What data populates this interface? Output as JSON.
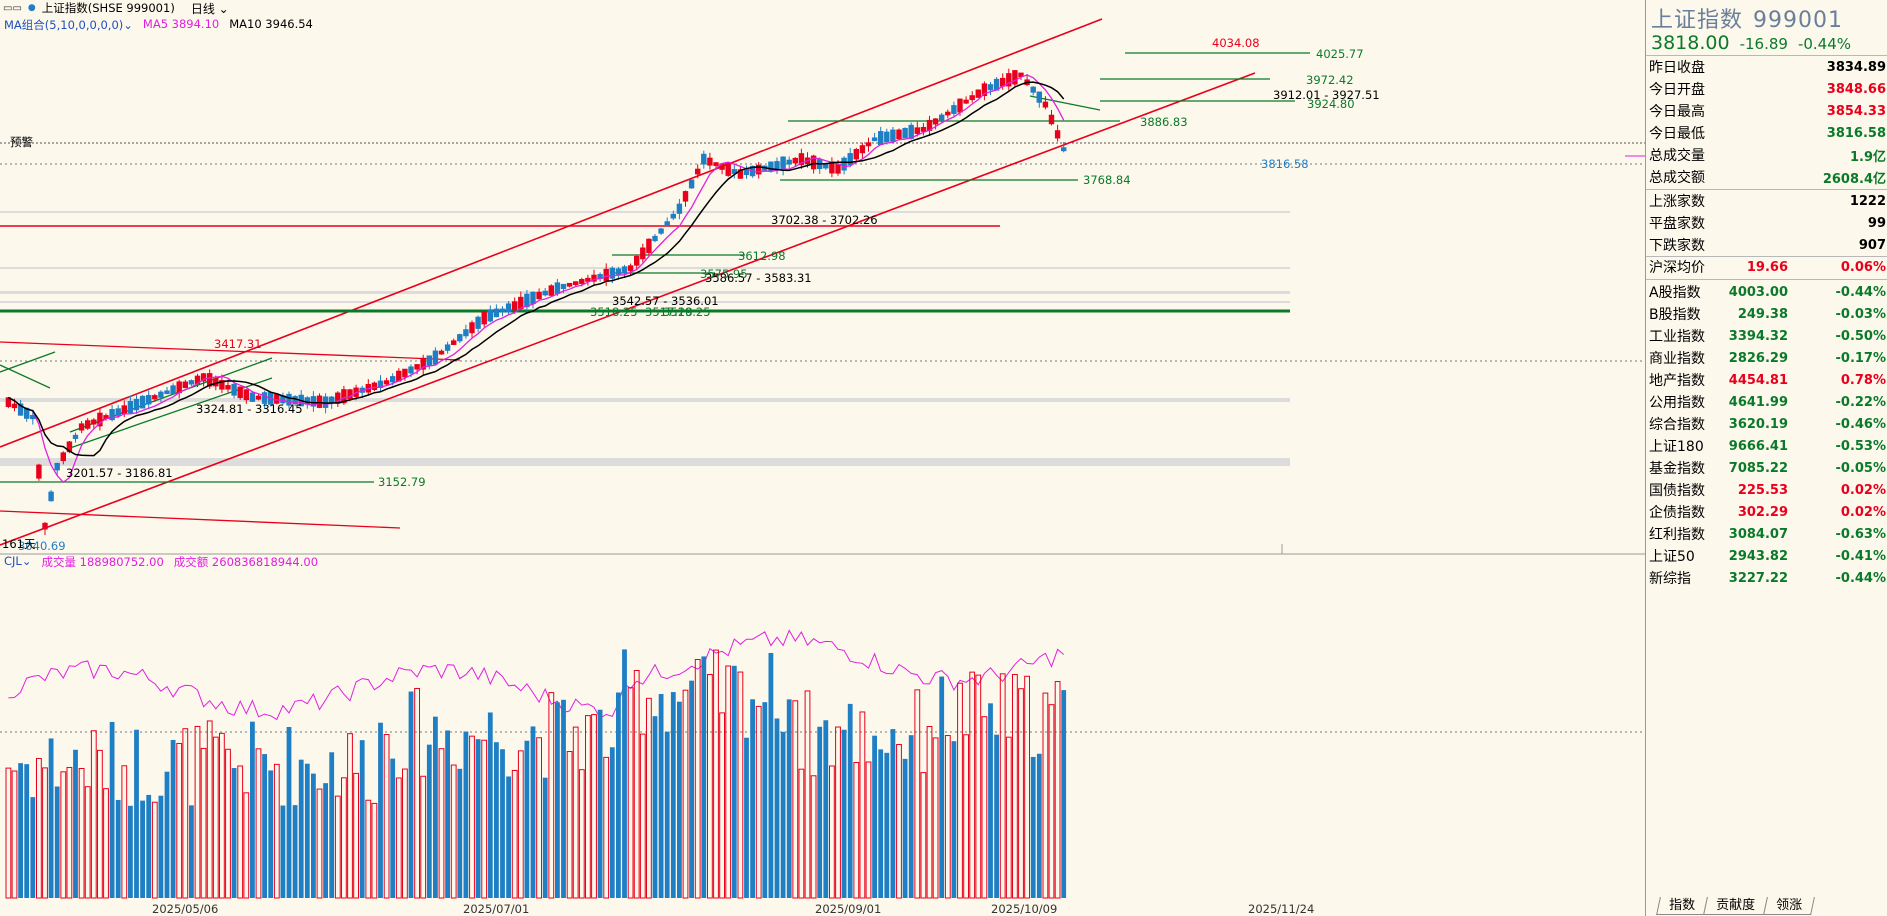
{
  "titlebar": {
    "title": "上证指数(SHSE 999001)",
    "period": "日线"
  },
  "ma_bar": {
    "group": "MA组合(5,10,0,0,0,0)",
    "ma5": "MA5 3894.10",
    "ma10": "MA10 3946.54"
  },
  "vol_bar": {
    "name": "CJL",
    "volume": "成交量 188980752.00",
    "amount": "成交额 260836818944.00"
  },
  "price_annotations": {
    "high_4034": "4034.08",
    "lv_4025": "4025.77",
    "lv_3972": "3972.42",
    "lv_3912": "3912.01 - 3927.51",
    "lv_3924": "3924.80",
    "lv_3886": "3886.83",
    "lv_3816": "3816.58",
    "lv_3768": "3768.84",
    "lv_3702": "3702.38 - 3702.26",
    "lv_3612": "3612.98",
    "lv_3586": "3586.57 - 3583.31",
    "lv_3575": "3575.95",
    "lv_3542": "3542.57 - 3536.01",
    "lv_3518": "3518.25",
    "lv_3517": "3517.28",
    "lv_3519": "3519.25",
    "lv_3417": "3417.31",
    "lv_3324": "3324.81 - 3316.45",
    "lv_3201": "3201.57 - 3186.81",
    "lv_3152": "3152.79",
    "low_3040": "3040.69",
    "days": "161天",
    "alert": "预警"
  },
  "x_axis": {
    "dates": [
      "2025/05/06",
      "2025/07/01",
      "2025/09/01",
      "2025/10/09",
      "2025/11/24"
    ]
  },
  "colors": {
    "up": "#e8001c",
    "down": "#1f7fc4",
    "ma5": "#e020e0",
    "ma10": "#000000",
    "channel": "#e8001c",
    "support": "#0a7a2a"
  },
  "panel": {
    "name": "上证指数",
    "code": "999001",
    "last": "3818.00",
    "change": "-16.89",
    "pct": "-0.44%",
    "stats": [
      {
        "label": "昨日收盘",
        "value": "3834.89",
        "color": "black"
      },
      {
        "label": "今日开盘",
        "value": "3848.66",
        "color": "red"
      },
      {
        "label": "今日最高",
        "value": "3854.33",
        "color": "red"
      },
      {
        "label": "今日最低",
        "value": "3816.58",
        "color": "green"
      },
      {
        "label": "总成交量",
        "value": "1.9亿",
        "color": "green"
      },
      {
        "label": "总成交额",
        "value": "2608.4亿",
        "color": "green"
      }
    ],
    "breadth": [
      {
        "label": "上涨家数",
        "value": "1222"
      },
      {
        "label": "平盘家数",
        "value": "99"
      },
      {
        "label": "下跌家数",
        "value": "907"
      }
    ],
    "avg": {
      "label": "沪深均价",
      "value": "19.66",
      "pct": "0.06%"
    },
    "indices": [
      {
        "label": "A股指数",
        "value": "4003.00",
        "pct": "-0.44%",
        "color": "green"
      },
      {
        "label": "B股指数",
        "value": "249.38",
        "pct": "-0.03%",
        "color": "green"
      },
      {
        "label": "工业指数",
        "value": "3394.32",
        "pct": "-0.50%",
        "color": "green"
      },
      {
        "label": "商业指数",
        "value": "2826.29",
        "pct": "-0.17%",
        "color": "green"
      },
      {
        "label": "地产指数",
        "value": "4454.81",
        "pct": "0.78%",
        "color": "red"
      },
      {
        "label": "公用指数",
        "value": "4641.99",
        "pct": "-0.22%",
        "color": "green"
      },
      {
        "label": "综合指数",
        "value": "3620.19",
        "pct": "-0.46%",
        "color": "green"
      },
      {
        "label": "上证180",
        "value": "9666.41",
        "pct": "-0.53%",
        "color": "green"
      },
      {
        "label": "基金指数",
        "value": "7085.22",
        "pct": "-0.05%",
        "color": "green"
      },
      {
        "label": "国债指数",
        "value": "225.53",
        "pct": "0.02%",
        "color": "red"
      },
      {
        "label": "企债指数",
        "value": "302.29",
        "pct": "0.02%",
        "color": "red"
      },
      {
        "label": "红利指数",
        "value": "3084.07",
        "pct": "-0.63%",
        "color": "green"
      },
      {
        "label": "上证50",
        "value": "2943.82",
        "pct": "-0.41%",
        "color": "green"
      },
      {
        "label": "新综指",
        "value": "3227.22",
        "pct": "-0.44%",
        "color": "green"
      }
    ],
    "tabs": [
      "指数",
      "贡献度",
      "领涨"
    ]
  }
}
